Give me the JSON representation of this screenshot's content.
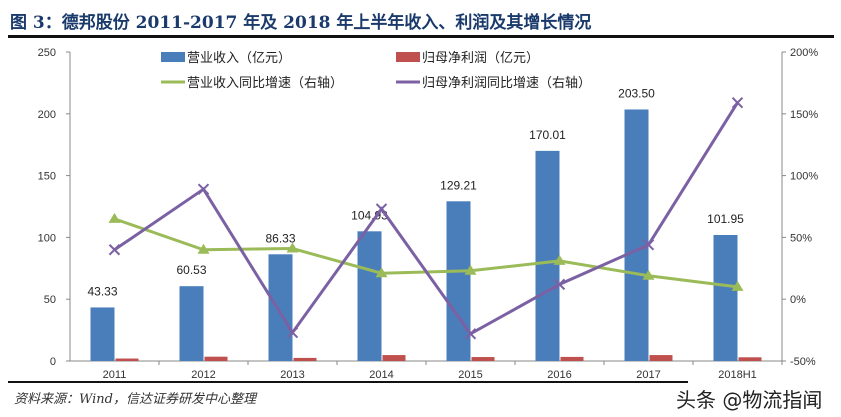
{
  "title": "图 3：德邦股份 2011-2017 年及 2018 年上半年收入、利润及其增长情况",
  "source": "资料来源：Wind，信达证券研发中心整理",
  "watermark": "头条 @物流指闻",
  "colors": {
    "revenue": "#4a7ebb",
    "profit": "#c0504d",
    "revenue_growth": "#9bbb59",
    "profit_growth": "#7b61a3"
  },
  "chart_data": {
    "type": "bar+line",
    "categories": [
      "2011",
      "2012",
      "2013",
      "2014",
      "2015",
      "2016",
      "2017",
      "2018H1"
    ],
    "left_axis": {
      "ylim": [
        0,
        250
      ],
      "ticks": [
        "0",
        "50",
        "100",
        "150",
        "200",
        "250"
      ]
    },
    "right_axis": {
      "ylim": [
        -50,
        200
      ],
      "unit": "%",
      "ticks": [
        "-50%",
        "0%",
        "50%",
        "100%",
        "150%",
        "200%"
      ]
    },
    "grid": false,
    "legend": "top",
    "series": [
      {
        "name": "营业收入（亿元）",
        "type": "bar",
        "axis": "left",
        "values": [
          43.33,
          60.53,
          86.33,
          104.93,
          129.21,
          170.01,
          203.5,
          101.95
        ],
        "labels": [
          "43.33",
          "60.53",
          "86.33",
          "104.93",
          "129.21",
          "170.01",
          "203.50",
          "101.95"
        ]
      },
      {
        "name": "归母净利润（亿元）",
        "type": "bar",
        "axis": "left",
        "values": [
          2.0,
          3.5,
          2.5,
          4.8,
          3.2,
          3.3,
          4.8,
          3.0
        ]
      },
      {
        "name": "营业收入同比增速（右轴）",
        "type": "line",
        "axis": "right",
        "values": [
          65,
          40,
          41,
          21,
          23,
          31,
          19,
          10
        ]
      },
      {
        "name": "归母净利润同比增速（右轴）",
        "type": "line",
        "axis": "right",
        "values": [
          40,
          89,
          -27,
          73,
          -28,
          12,
          44,
          159
        ]
      }
    ]
  }
}
